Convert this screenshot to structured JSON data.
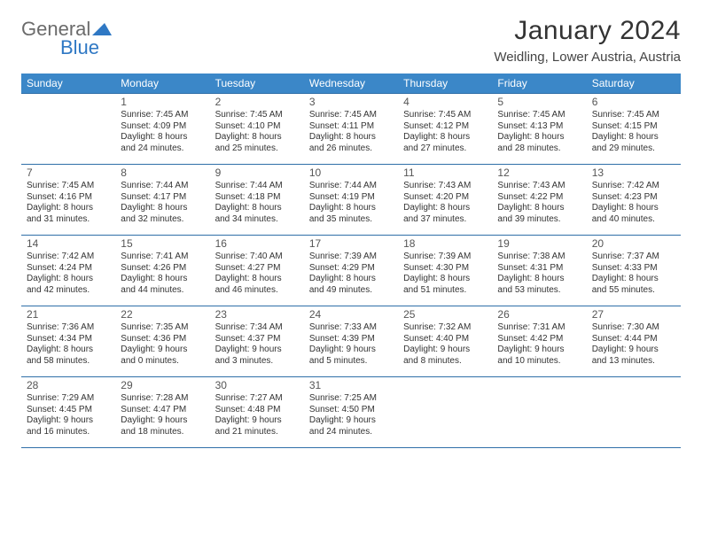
{
  "brand": {
    "word1": "General",
    "word2": "Blue"
  },
  "colors": {
    "header_bg": "#3b87c8",
    "header_text": "#ffffff",
    "row_border": "#2f6fa8",
    "body_text": "#333333",
    "daynum_text": "#555555",
    "brand_gray": "#6b6b6b",
    "brand_blue": "#2f78c4",
    "page_bg": "#ffffff"
  },
  "title": "January 2024",
  "location": "Weidling, Lower Austria, Austria",
  "weekdays": [
    "Sunday",
    "Monday",
    "Tuesday",
    "Wednesday",
    "Thursday",
    "Friday",
    "Saturday"
  ],
  "weeks": [
    [
      {
        "n": "",
        "sr": "",
        "ss": "",
        "d1": "",
        "d2": ""
      },
      {
        "n": "1",
        "sr": "Sunrise: 7:45 AM",
        "ss": "Sunset: 4:09 PM",
        "d1": "Daylight: 8 hours",
        "d2": "and 24 minutes."
      },
      {
        "n": "2",
        "sr": "Sunrise: 7:45 AM",
        "ss": "Sunset: 4:10 PM",
        "d1": "Daylight: 8 hours",
        "d2": "and 25 minutes."
      },
      {
        "n": "3",
        "sr": "Sunrise: 7:45 AM",
        "ss": "Sunset: 4:11 PM",
        "d1": "Daylight: 8 hours",
        "d2": "and 26 minutes."
      },
      {
        "n": "4",
        "sr": "Sunrise: 7:45 AM",
        "ss": "Sunset: 4:12 PM",
        "d1": "Daylight: 8 hours",
        "d2": "and 27 minutes."
      },
      {
        "n": "5",
        "sr": "Sunrise: 7:45 AM",
        "ss": "Sunset: 4:13 PM",
        "d1": "Daylight: 8 hours",
        "d2": "and 28 minutes."
      },
      {
        "n": "6",
        "sr": "Sunrise: 7:45 AM",
        "ss": "Sunset: 4:15 PM",
        "d1": "Daylight: 8 hours",
        "d2": "and 29 minutes."
      }
    ],
    [
      {
        "n": "7",
        "sr": "Sunrise: 7:45 AM",
        "ss": "Sunset: 4:16 PM",
        "d1": "Daylight: 8 hours",
        "d2": "and 31 minutes."
      },
      {
        "n": "8",
        "sr": "Sunrise: 7:44 AM",
        "ss": "Sunset: 4:17 PM",
        "d1": "Daylight: 8 hours",
        "d2": "and 32 minutes."
      },
      {
        "n": "9",
        "sr": "Sunrise: 7:44 AM",
        "ss": "Sunset: 4:18 PM",
        "d1": "Daylight: 8 hours",
        "d2": "and 34 minutes."
      },
      {
        "n": "10",
        "sr": "Sunrise: 7:44 AM",
        "ss": "Sunset: 4:19 PM",
        "d1": "Daylight: 8 hours",
        "d2": "and 35 minutes."
      },
      {
        "n": "11",
        "sr": "Sunrise: 7:43 AM",
        "ss": "Sunset: 4:20 PM",
        "d1": "Daylight: 8 hours",
        "d2": "and 37 minutes."
      },
      {
        "n": "12",
        "sr": "Sunrise: 7:43 AM",
        "ss": "Sunset: 4:22 PM",
        "d1": "Daylight: 8 hours",
        "d2": "and 39 minutes."
      },
      {
        "n": "13",
        "sr": "Sunrise: 7:42 AM",
        "ss": "Sunset: 4:23 PM",
        "d1": "Daylight: 8 hours",
        "d2": "and 40 minutes."
      }
    ],
    [
      {
        "n": "14",
        "sr": "Sunrise: 7:42 AM",
        "ss": "Sunset: 4:24 PM",
        "d1": "Daylight: 8 hours",
        "d2": "and 42 minutes."
      },
      {
        "n": "15",
        "sr": "Sunrise: 7:41 AM",
        "ss": "Sunset: 4:26 PM",
        "d1": "Daylight: 8 hours",
        "d2": "and 44 minutes."
      },
      {
        "n": "16",
        "sr": "Sunrise: 7:40 AM",
        "ss": "Sunset: 4:27 PM",
        "d1": "Daylight: 8 hours",
        "d2": "and 46 minutes."
      },
      {
        "n": "17",
        "sr": "Sunrise: 7:39 AM",
        "ss": "Sunset: 4:29 PM",
        "d1": "Daylight: 8 hours",
        "d2": "and 49 minutes."
      },
      {
        "n": "18",
        "sr": "Sunrise: 7:39 AM",
        "ss": "Sunset: 4:30 PM",
        "d1": "Daylight: 8 hours",
        "d2": "and 51 minutes."
      },
      {
        "n": "19",
        "sr": "Sunrise: 7:38 AM",
        "ss": "Sunset: 4:31 PM",
        "d1": "Daylight: 8 hours",
        "d2": "and 53 minutes."
      },
      {
        "n": "20",
        "sr": "Sunrise: 7:37 AM",
        "ss": "Sunset: 4:33 PM",
        "d1": "Daylight: 8 hours",
        "d2": "and 55 minutes."
      }
    ],
    [
      {
        "n": "21",
        "sr": "Sunrise: 7:36 AM",
        "ss": "Sunset: 4:34 PM",
        "d1": "Daylight: 8 hours",
        "d2": "and 58 minutes."
      },
      {
        "n": "22",
        "sr": "Sunrise: 7:35 AM",
        "ss": "Sunset: 4:36 PM",
        "d1": "Daylight: 9 hours",
        "d2": "and 0 minutes."
      },
      {
        "n": "23",
        "sr": "Sunrise: 7:34 AM",
        "ss": "Sunset: 4:37 PM",
        "d1": "Daylight: 9 hours",
        "d2": "and 3 minutes."
      },
      {
        "n": "24",
        "sr": "Sunrise: 7:33 AM",
        "ss": "Sunset: 4:39 PM",
        "d1": "Daylight: 9 hours",
        "d2": "and 5 minutes."
      },
      {
        "n": "25",
        "sr": "Sunrise: 7:32 AM",
        "ss": "Sunset: 4:40 PM",
        "d1": "Daylight: 9 hours",
        "d2": "and 8 minutes."
      },
      {
        "n": "26",
        "sr": "Sunrise: 7:31 AM",
        "ss": "Sunset: 4:42 PM",
        "d1": "Daylight: 9 hours",
        "d2": "and 10 minutes."
      },
      {
        "n": "27",
        "sr": "Sunrise: 7:30 AM",
        "ss": "Sunset: 4:44 PM",
        "d1": "Daylight: 9 hours",
        "d2": "and 13 minutes."
      }
    ],
    [
      {
        "n": "28",
        "sr": "Sunrise: 7:29 AM",
        "ss": "Sunset: 4:45 PM",
        "d1": "Daylight: 9 hours",
        "d2": "and 16 minutes."
      },
      {
        "n": "29",
        "sr": "Sunrise: 7:28 AM",
        "ss": "Sunset: 4:47 PM",
        "d1": "Daylight: 9 hours",
        "d2": "and 18 minutes."
      },
      {
        "n": "30",
        "sr": "Sunrise: 7:27 AM",
        "ss": "Sunset: 4:48 PM",
        "d1": "Daylight: 9 hours",
        "d2": "and 21 minutes."
      },
      {
        "n": "31",
        "sr": "Sunrise: 7:25 AM",
        "ss": "Sunset: 4:50 PM",
        "d1": "Daylight: 9 hours",
        "d2": "and 24 minutes."
      },
      {
        "n": "",
        "sr": "",
        "ss": "",
        "d1": "",
        "d2": ""
      },
      {
        "n": "",
        "sr": "",
        "ss": "",
        "d1": "",
        "d2": ""
      },
      {
        "n": "",
        "sr": "",
        "ss": "",
        "d1": "",
        "d2": ""
      }
    ]
  ]
}
